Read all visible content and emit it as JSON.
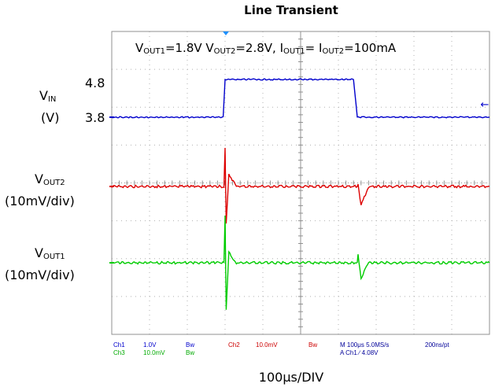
{
  "title": "Line Transient",
  "annotation": {
    "v1": "V",
    "v1_sub": "OUT1",
    "v1_val": "=1.8V ",
    "v2": "V",
    "v2_sub": "OUT2",
    "v2_val": "=2.8V, ",
    "i1": "I",
    "i1_sub": "OUT1",
    "i1_mid": "= ",
    "i2": "I",
    "i2_sub": "OUT2",
    "i2_val": "=100mA"
  },
  "labels": {
    "vin": "V",
    "vin_sub": "IN",
    "vin_unit": "(V)",
    "vin_hi": "4.8",
    "vin_lo": "3.8",
    "vout2": "V",
    "vout2_sub": "OUT2",
    "vout2_unit": "(10mV/div)",
    "vout1": "V",
    "vout1_sub": "OUT1",
    "vout1_unit": "(10mV/div)"
  },
  "xlabel": "100μs/DIV",
  "status": {
    "row1": [
      {
        "text": "Ch1",
        "color": "#0000cc"
      },
      {
        "text": "1.0V",
        "color": "#0000cc"
      },
      {
        "text": "Bw",
        "color": "#0000cc"
      },
      {
        "text": "Ch2",
        "color": "#cc0000"
      },
      {
        "text": "10.0mV",
        "color": "#cc0000"
      },
      {
        "text": "Bw",
        "color": "#cc0000"
      },
      {
        "text": "M 100μs 5.0MS/s",
        "color": "#000099"
      },
      {
        "text": "200ns/pt",
        "color": "#000099"
      }
    ],
    "row2": [
      {
        "text": "Ch3",
        "color": "#00aa00"
      },
      {
        "text": "10.0mV",
        "color": "#00aa00"
      },
      {
        "text": "Bw",
        "color": "#00aa00"
      },
      {
        "text": "A  Ch1  ∕  4.08V",
        "color": "#000099"
      }
    ]
  },
  "chart_data": {
    "type": "line",
    "title": "Line Transient",
    "xlabel": "100μs/DIV",
    "x_unit": "μs",
    "xlim": [
      0,
      1000
    ],
    "series": [
      {
        "name": "VIN",
        "color": "#0000cc",
        "x": [
          0,
          295,
          300,
          640,
          650,
          1000
        ],
        "values": [
          3.8,
          3.8,
          4.8,
          4.8,
          3.8,
          3.8
        ],
        "unit": "V"
      },
      {
        "name": "VOUT2",
        "color": "#dd0000",
        "x": [
          0,
          297,
          300,
          303,
          310,
          330,
          650,
          652,
          660,
          680,
          1000
        ],
        "values": [
          0,
          0,
          30,
          -30,
          10,
          0,
          0,
          2,
          -15,
          0,
          0
        ],
        "unit": "mV"
      },
      {
        "name": "VOUT1",
        "color": "#00cc00",
        "x": [
          0,
          297,
          300,
          303,
          310,
          330,
          650,
          652,
          660,
          680,
          1000
        ],
        "values": [
          0,
          0,
          37,
          -37,
          8,
          0,
          0,
          6,
          -12,
          0,
          0
        ],
        "unit": "mV"
      }
    ]
  }
}
